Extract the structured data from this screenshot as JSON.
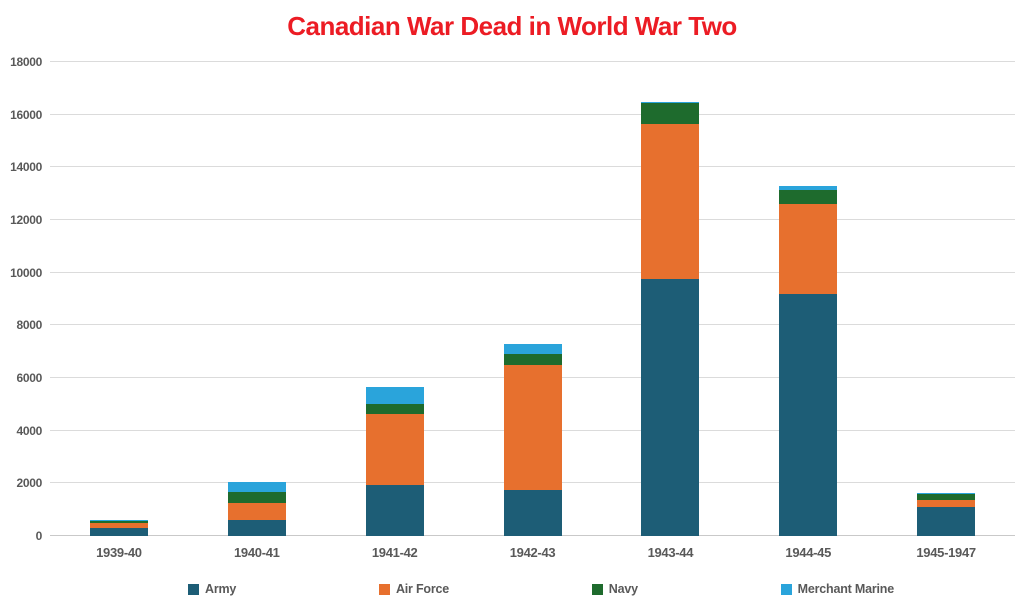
{
  "title": "Canadian War Dead in World War Two",
  "colors": {
    "title": "#EC1C24",
    "axis_text": "#595959",
    "gridline": "#DBDBDB",
    "axis_line": "#C9C9C9",
    "background": "#FFFFFF"
  },
  "chart_data": {
    "type": "bar",
    "stacked": true,
    "title": "Canadian War Dead in World War Two",
    "categories": [
      "1939-40",
      "1940-41",
      "1941-42",
      "1942-43",
      "1943-44",
      "1944-45",
      "1945-1947"
    ],
    "series": [
      {
        "name": "Army",
        "color": "#1D5D76",
        "values": [
          300,
          610,
          1950,
          1750,
          9750,
          9200,
          1100
        ]
      },
      {
        "name": "Air Force",
        "color": "#E7702E",
        "values": [
          200,
          650,
          2700,
          4750,
          5900,
          3400,
          250
        ]
      },
      {
        "name": "Navy",
        "color": "#1E6B2D",
        "values": [
          60,
          420,
          350,
          420,
          800,
          550,
          250
        ]
      },
      {
        "name": "Merchant Marine",
        "color": "#2AA4DB",
        "values": [
          40,
          380,
          650,
          380,
          50,
          150,
          50
        ]
      }
    ],
    "totals": [
      600,
      2060,
      5650,
      7300,
      16500,
      13300,
      1650
    ],
    "xlabel": "",
    "ylabel": "",
    "ylim": [
      0,
      18000
    ],
    "yticks": [
      0,
      2000,
      4000,
      6000,
      8000,
      10000,
      12000,
      14000,
      16000,
      18000
    ],
    "grid": true,
    "legend_position": "bottom",
    "legend_labels": [
      "Army",
      "Air Force",
      "Navy",
      "Merchant Marine"
    ]
  }
}
